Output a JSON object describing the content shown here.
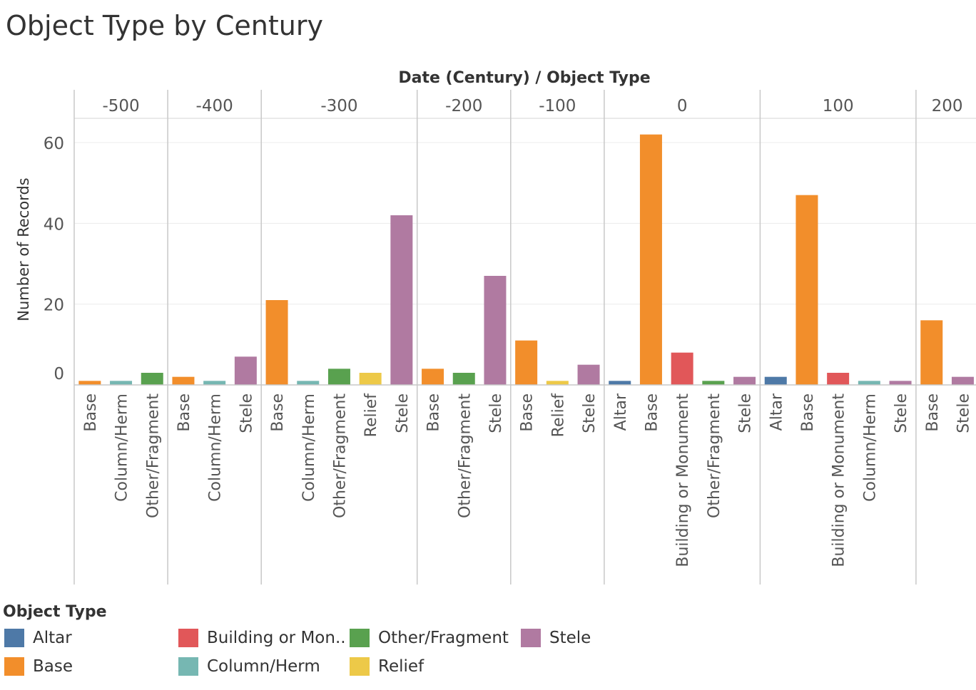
{
  "chart_data": {
    "type": "bar",
    "title": "Object Type by Century",
    "column_header": "Date (Century)  /  Object Type",
    "ylabel": "Number of Records",
    "ylim": [
      0,
      66
    ],
    "yticks": [
      0,
      20,
      40,
      60
    ],
    "grid": true,
    "groups": [
      {
        "label": "-500",
        "bars": [
          {
            "type": "Base",
            "value": 1
          },
          {
            "type": "Column/Herm",
            "value": 1
          },
          {
            "type": "Other/Fragment",
            "value": 3
          }
        ]
      },
      {
        "label": "-400",
        "bars": [
          {
            "type": "Base",
            "value": 2
          },
          {
            "type": "Column/Herm",
            "value": 1
          },
          {
            "type": "Stele",
            "value": 7
          }
        ]
      },
      {
        "label": "-300",
        "bars": [
          {
            "type": "Base",
            "value": 21
          },
          {
            "type": "Column/Herm",
            "value": 1
          },
          {
            "type": "Other/Fragment",
            "value": 4
          },
          {
            "type": "Relief",
            "value": 3
          },
          {
            "type": "Stele",
            "value": 42
          }
        ]
      },
      {
        "label": "-200",
        "bars": [
          {
            "type": "Base",
            "value": 4
          },
          {
            "type": "Other/Fragment",
            "value": 3
          },
          {
            "type": "Stele",
            "value": 27
          }
        ]
      },
      {
        "label": "-100",
        "bars": [
          {
            "type": "Base",
            "value": 11
          },
          {
            "type": "Relief",
            "value": 1
          },
          {
            "type": "Stele",
            "value": 5
          }
        ]
      },
      {
        "label": "0",
        "bars": [
          {
            "type": "Altar",
            "value": 1
          },
          {
            "type": "Base",
            "value": 62
          },
          {
            "type": "Building or Monument",
            "value": 8
          },
          {
            "type": "Other/Fragment",
            "value": 1
          },
          {
            "type": "Stele",
            "value": 2
          }
        ]
      },
      {
        "label": "100",
        "bars": [
          {
            "type": "Altar",
            "value": 2
          },
          {
            "type": "Base",
            "value": 47
          },
          {
            "type": "Building or Monument",
            "value": 3
          },
          {
            "type": "Column/Herm",
            "value": 1
          },
          {
            "type": "Stele",
            "value": 1
          }
        ]
      },
      {
        "label": "200",
        "bars": [
          {
            "type": "Base",
            "value": 16
          },
          {
            "type": "Stele",
            "value": 2
          }
        ]
      }
    ],
    "legend": {
      "title": "Object Type",
      "placement": "bottom-left",
      "items": [
        {
          "label": "Altar",
          "type": "Altar",
          "color": "#4e79a7"
        },
        {
          "label": "Base",
          "type": "Base",
          "color": "#f28e2b"
        },
        {
          "label": "Building or Mon..",
          "type": "Building or Monument",
          "color": "#e15759"
        },
        {
          "label": "Column/Herm",
          "type": "Column/Herm",
          "color": "#76b7b2"
        },
        {
          "label": "Other/Fragment",
          "type": "Other/Fragment",
          "color": "#59a14f"
        },
        {
          "label": "Relief",
          "type": "Relief",
          "color": "#edc948"
        },
        {
          "label": "Stele",
          "type": "Stele",
          "color": "#b07aa1"
        }
      ]
    }
  }
}
